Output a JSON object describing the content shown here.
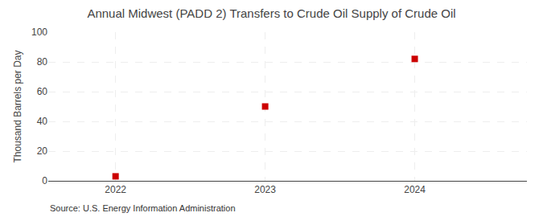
{
  "chart_data": {
    "type": "scatter",
    "title": "Annual Midwest (PADD 2) Transfers to Crude Oil Supply of Crude Oil",
    "ylabel": "Thousand Barrels per Day",
    "annotations": [
      "Source: U.S. Energy Information Administration"
    ],
    "x": [
      2022,
      2023,
      2024
    ],
    "values": [
      3,
      50,
      82
    ],
    "xlim": [
      2021.55,
      2024.75
    ],
    "ylim": [
      0,
      100
    ],
    "xticks": [
      2022,
      2023,
      2024
    ],
    "yticks": [
      0,
      20,
      40,
      60,
      80,
      100
    ],
    "color": "#cc0000",
    "marker": "square",
    "grid": true
  }
}
